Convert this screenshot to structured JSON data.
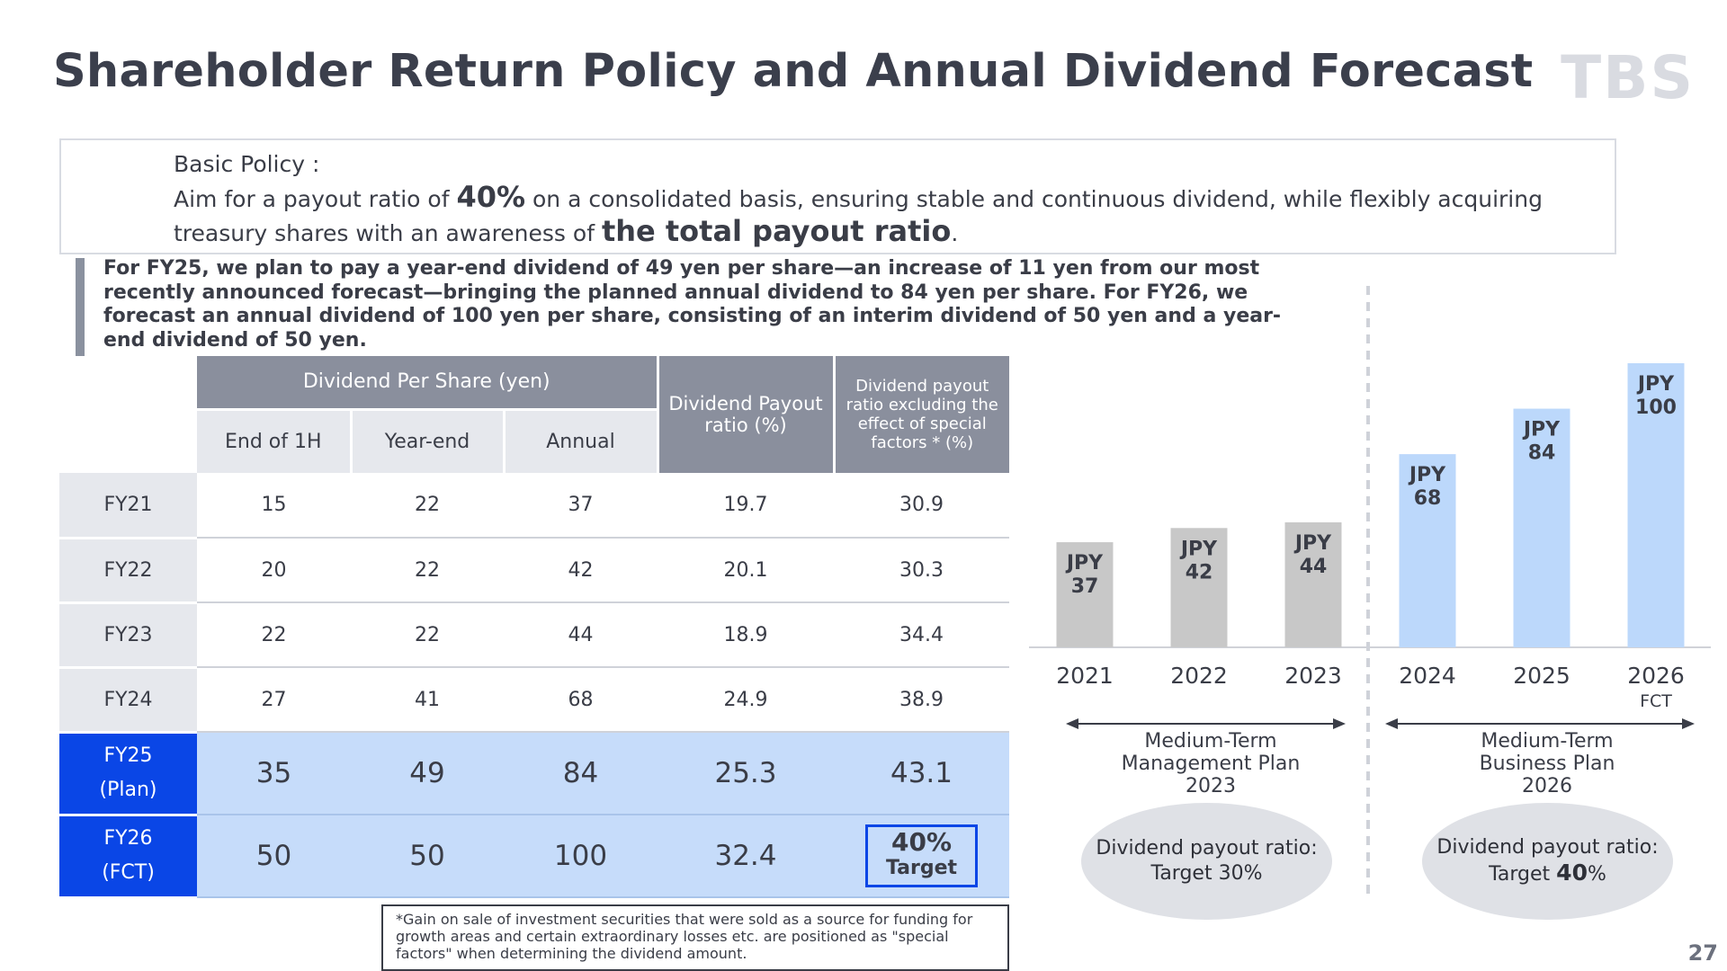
{
  "page": {
    "title": "Shareholder Return Policy and Annual Dividend Forecast",
    "logo": "TBS",
    "page_number": "27"
  },
  "policy": {
    "heading": "Basic Policy :",
    "line2_pre": "Aim for a payout ratio of ",
    "line2_bold": "40%",
    "line2_post": " on a consolidated basis, ensuring stable and continuous dividend, while flexibly acquiring",
    "line3_pre": "treasury shares with an awareness of ",
    "line3_bold": "the total payout ratio",
    "line3_post": "."
  },
  "notes": {
    "text": "For FY25, we plan to pay a year-end dividend of 49 yen per share—an increase of 11 yen from our most recently announced forecast—bringing the planned annual dividend to 84 yen per share. For FY26, we forecast an annual dividend of 100 yen per share, consisting of an interim dividend of 50 yen and a year-end dividend of 50 yen."
  },
  "table": {
    "group_header": "Dividend Per Share (yen)",
    "sub_headers": [
      "End of 1H",
      "Year-end",
      "Annual"
    ],
    "payout_header": "Dividend Payout ratio (%)",
    "excl_header": "Dividend payout ratio excluding the effect of special factors * (%)",
    "rows": [
      {
        "label": "FY21",
        "h1": "15",
        "ye": "22",
        "annual": "37",
        "payout": "19.7",
        "excl": "30.9"
      },
      {
        "label": "FY22",
        "h1": "20",
        "ye": "22",
        "annual": "42",
        "payout": "20.1",
        "excl": "30.3"
      },
      {
        "label": "FY23",
        "h1": "22",
        "ye": "22",
        "annual": "44",
        "payout": "18.9",
        "excl": "34.4"
      },
      {
        "label": "FY24",
        "h1": "27",
        "ye": "41",
        "annual": "68",
        "payout": "24.9",
        "excl": "38.9"
      }
    ],
    "fy25": {
      "label1": "FY25",
      "label2": "(Plan)",
      "h1": "35",
      "ye": "49",
      "annual": "84",
      "payout": "25.3",
      "excl": "43.1"
    },
    "fy26": {
      "label1": "FY26",
      "label2": "(FCT)",
      "h1": "50",
      "ye": "50",
      "annual": "100",
      "payout": "32.4",
      "excl_value": "40%",
      "excl_note": "Target"
    }
  },
  "footnote": "*Gain on sale of investment securities that were sold as a source for funding for growth areas and certain extraordinary losses etc. are positioned as \"special factors\" when determining the dividend amount.",
  "chart_data": {
    "type": "bar",
    "categories": [
      "2021",
      "2022",
      "2023",
      "2024",
      "2025",
      "2026"
    ],
    "values": [
      37,
      42,
      44,
      68,
      84,
      100
    ],
    "value_labels": [
      "JPY\n37",
      "JPY\n42",
      "JPY\n44",
      "JPY\n68",
      "JPY\n84",
      "JPY\n100"
    ],
    "category_sublabels": [
      "",
      "",
      "",
      "",
      "",
      "FCT"
    ],
    "bar_colors": [
      "#c8c8c8",
      "#c8c8c8",
      "#c8c8c8",
      "#bcd8fb",
      "#bcd8fb",
      "#bcd8fb"
    ],
    "ylim": [
      0,
      100
    ],
    "grid": false,
    "title": "",
    "xlabel": "",
    "ylabel": ""
  },
  "plans": [
    {
      "name": "Medium-Term\nManagement Plan\n2023",
      "ratio_label": "Dividend payout ratio:",
      "ratio_pre": "Target ",
      "ratio_bold": "",
      "ratio_value": "30%",
      "ratio_post": ""
    },
    {
      "name": "Medium-Term\nBusiness Plan\n2026",
      "ratio_label": "Dividend payout ratio:",
      "ratio_pre": "Target ",
      "ratio_bold": "40",
      "ratio_value": "",
      "ratio_post": "%"
    }
  ],
  "colors": {
    "header_gray": "#8a8f9d",
    "accent_blue": "#0a46e6",
    "light_blue": "#c6dcfa",
    "bar_gray": "#c8c8c8",
    "bar_blue": "#bcd8fb"
  }
}
